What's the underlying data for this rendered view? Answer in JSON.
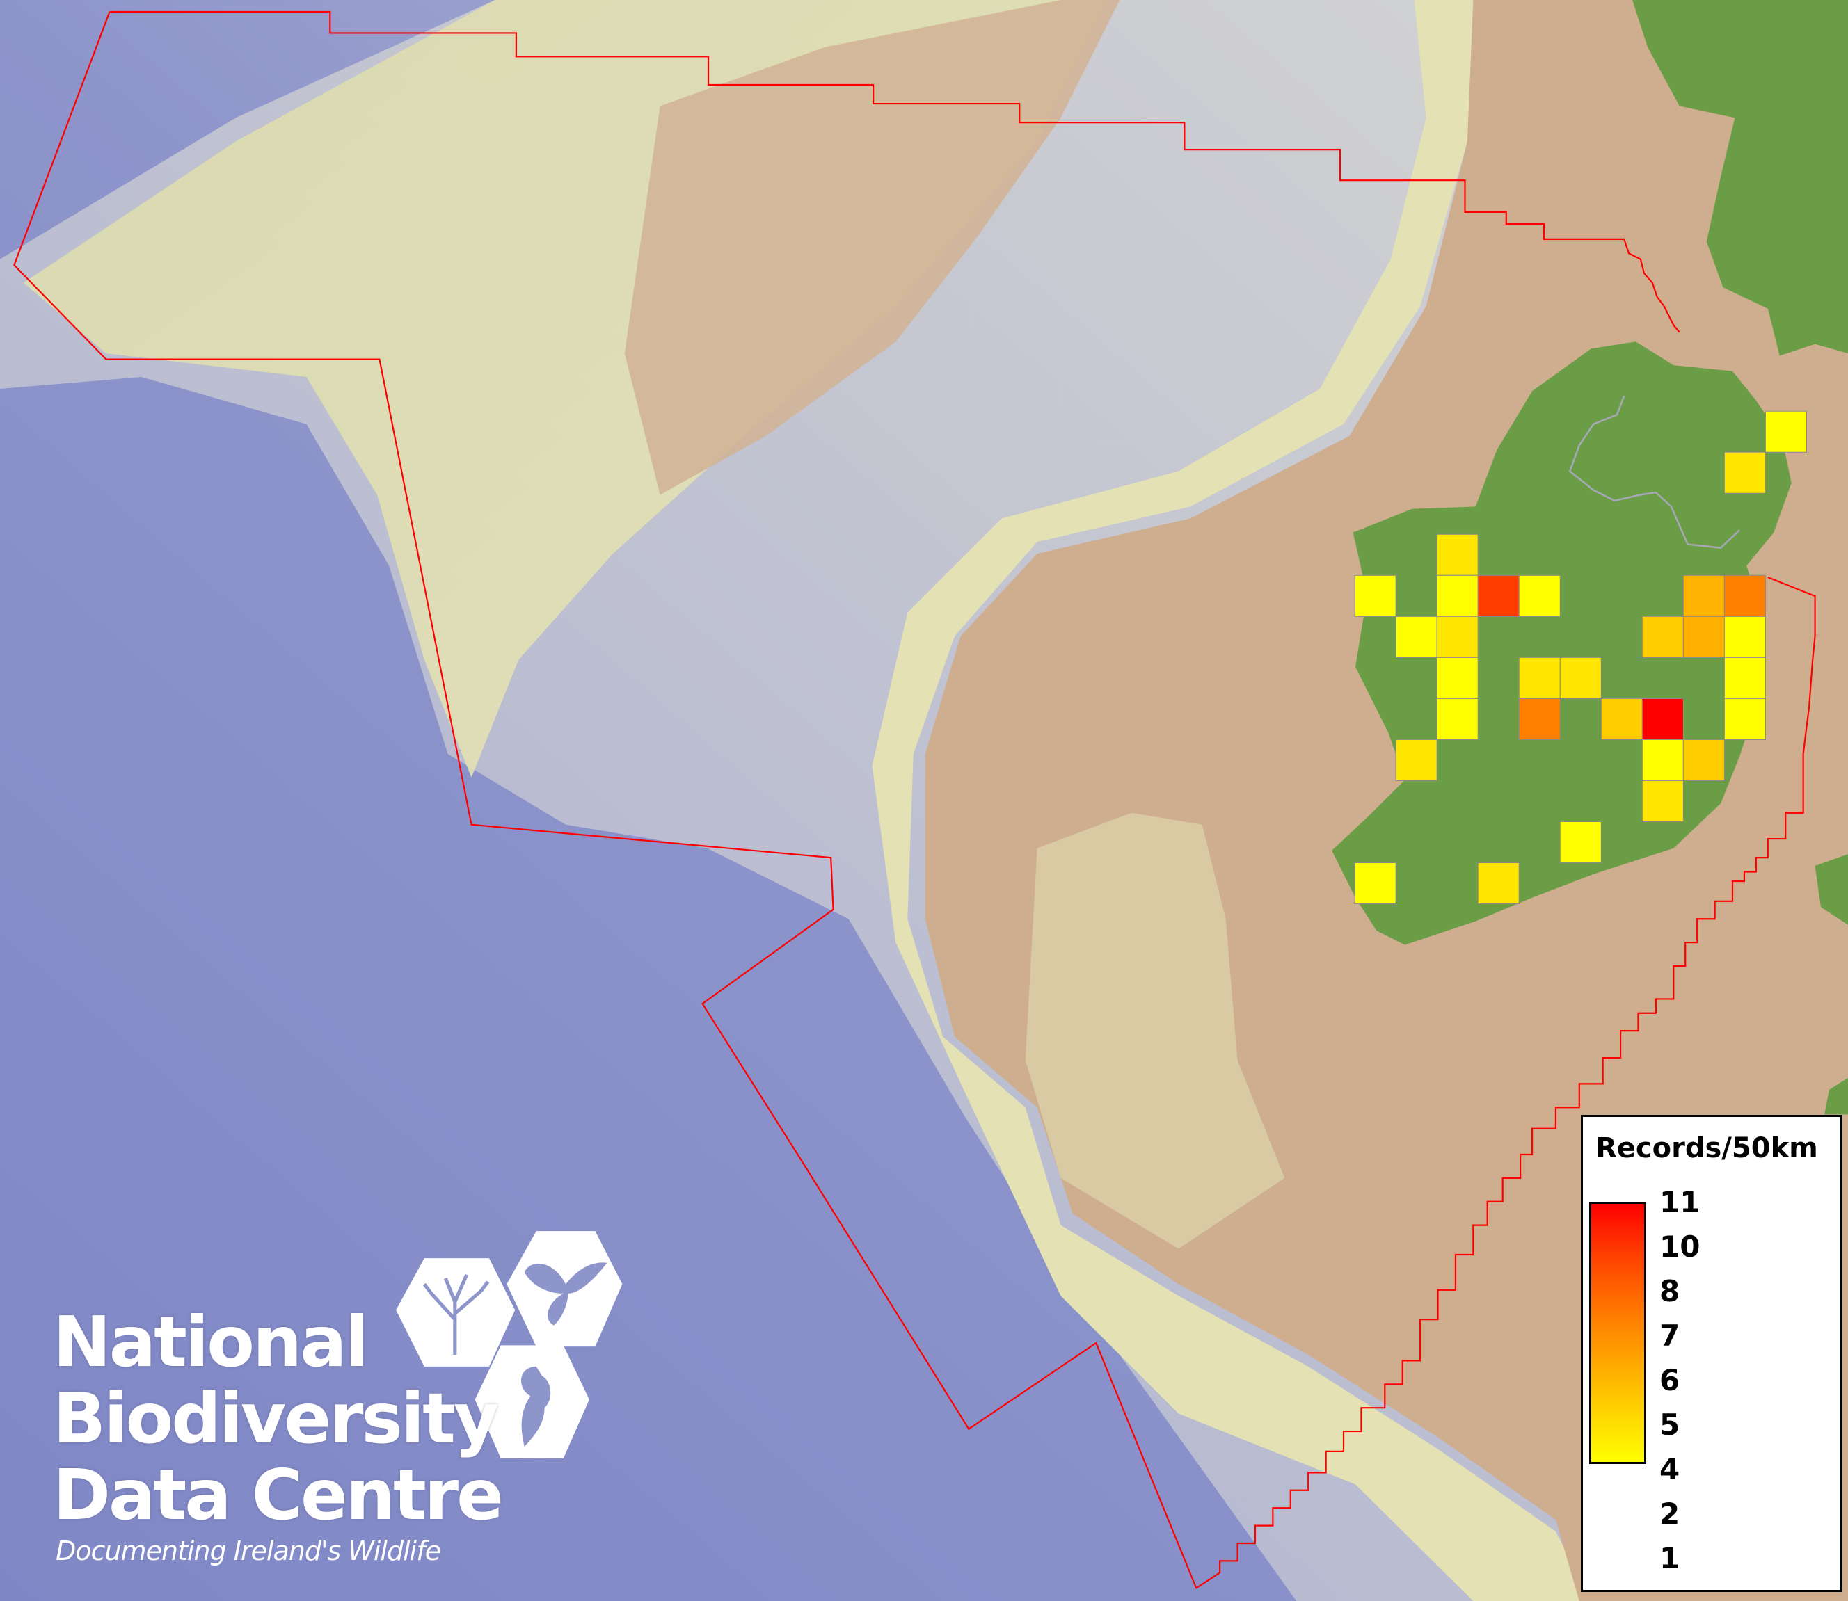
{
  "logo": {
    "line1": "National",
    "line2": "Biodiversity",
    "line3": "Data Centre",
    "tagline": "Documenting Ireland's Wildlife",
    "icons": [
      "tree-icon",
      "butterfly-icon",
      "seahorse-icon"
    ]
  },
  "legend": {
    "title": "Records/50km",
    "labels": [
      "11",
      "10",
      "8",
      "7",
      "6",
      "5",
      "4",
      "2",
      "1"
    ],
    "color_low": "#ffff00",
    "color_high": "#ff0000"
  },
  "colors": {
    "boundary": "#ff0000",
    "land": "#6a9d45",
    "shelf": "#cfae90",
    "deep_sea": "#7f87c8"
  },
  "cells": [
    {
      "value": 1,
      "color": "#ffff00"
    },
    {
      "value": 2,
      "color": "#ffe600"
    },
    {
      "value": 2,
      "color": "#ffe600"
    },
    {
      "value": 1,
      "color": "#ffff00"
    },
    {
      "value": 1,
      "color": "#ffff00"
    },
    {
      "value": 10,
      "color": "#ff3c00"
    },
    {
      "value": 1,
      "color": "#ffff00"
    },
    {
      "value": 4,
      "color": "#ffb300"
    },
    {
      "value": 6,
      "color": "#ff8000"
    },
    {
      "value": 1,
      "color": "#ffff00"
    },
    {
      "value": 2,
      "color": "#ffe600"
    },
    {
      "value": 3,
      "color": "#ffcc00"
    },
    {
      "value": 4,
      "color": "#ffb000"
    },
    {
      "value": 1,
      "color": "#ffff00"
    },
    {
      "value": 1,
      "color": "#ffff00"
    },
    {
      "value": 2,
      "color": "#ffe600"
    },
    {
      "value": 2,
      "color": "#ffe600"
    },
    {
      "value": 1,
      "color": "#ffff00"
    },
    {
      "value": 1,
      "color": "#ffff00"
    },
    {
      "value": 6,
      "color": "#ff8000"
    },
    {
      "value": 3,
      "color": "#ffcc00"
    },
    {
      "value": 11,
      "color": "#ff0000"
    },
    {
      "value": 1,
      "color": "#ffff00"
    },
    {
      "value": 2,
      "color": "#ffe600"
    },
    {
      "value": 1,
      "color": "#ffff00"
    },
    {
      "value": 3,
      "color": "#ffcc00"
    },
    {
      "value": 2,
      "color": "#ffe600"
    },
    {
      "value": 1,
      "color": "#ffff00"
    },
    {
      "value": 1,
      "color": "#ffff00"
    },
    {
      "value": 2,
      "color": "#ffe600"
    }
  ]
}
